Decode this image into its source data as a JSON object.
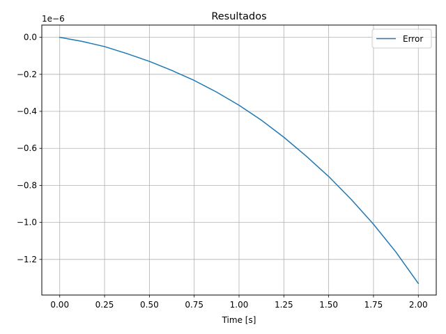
{
  "chart_data": {
    "type": "line",
    "title": "Resultados",
    "xlabel": "Time [s]",
    "ylabel": "",
    "y_offset_label": "1e−6",
    "xlim": [
      -0.1,
      2.1
    ],
    "ylim": [
      -1.3925,
      0.0663
    ],
    "grid": true,
    "legend_position": "upper right",
    "x_ticks": [
      0.0,
      0.25,
      0.5,
      0.75,
      1.0,
      1.25,
      1.5,
      1.75,
      2.0
    ],
    "x_tick_labels": [
      "0.00",
      "0.25",
      "0.50",
      "0.75",
      "1.00",
      "1.25",
      "1.50",
      "1.75",
      "2.00"
    ],
    "y_ticks": [
      0.0,
      -0.2,
      -0.4,
      -0.6,
      -0.8,
      -1.0,
      -1.2
    ],
    "y_tick_labels": [
      "0.0",
      "−0.2",
      "−0.4",
      "−0.6",
      "−0.8",
      "−1.0",
      "−1.2"
    ],
    "series": [
      {
        "name": "Error",
        "color": "#1f77b4",
        "x": [
          0.0,
          0.125,
          0.25,
          0.375,
          0.5,
          0.625,
          0.75,
          0.875,
          1.0,
          1.125,
          1.25,
          1.375,
          1.5,
          1.625,
          1.75,
          1.875,
          2.0
        ],
        "y": [
          0.0,
          -0.022,
          -0.05,
          -0.088,
          -0.13,
          -0.179,
          -0.233,
          -0.296,
          -0.367,
          -0.448,
          -0.54,
          -0.642,
          -0.752,
          -0.875,
          -1.01,
          -1.16,
          -1.33
        ]
      }
    ]
  }
}
